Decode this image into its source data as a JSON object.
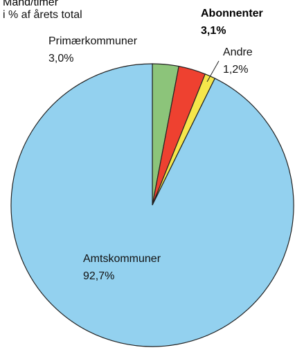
{
  "chart_data": {
    "type": "pie",
    "title": "Mand/timer",
    "subtitle": "i % af årets total",
    "categories": [
      "Primærkommuner",
      "Abonnenter",
      "Andre",
      "Amtskommuner"
    ],
    "values": [
      3.0,
      3.1,
      1.2,
      92.7
    ],
    "value_labels": [
      "3,0%",
      "3,1%",
      "1,2%",
      "92,7%"
    ],
    "colors": [
      "#8cc47a",
      "#ee4130",
      "#f5e64a",
      "#93d1ef"
    ]
  }
}
